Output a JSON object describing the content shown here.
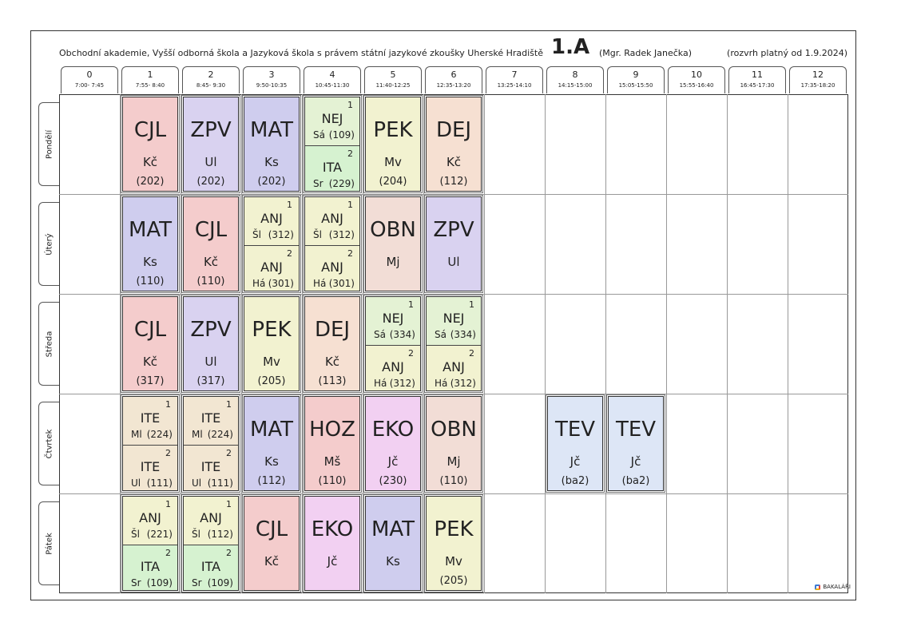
{
  "header": {
    "school": "Obchodní akademie, Vyšší odborná škola a Jazyková škola s právem státní jazykové zkoušky Uherské Hradiště",
    "class_name": "1.A",
    "teacher": "(Mgr. Radek Janečka)",
    "valid_from": "(rozvrh platný od 1.9.2024)"
  },
  "periods": [
    {
      "num": "0",
      "time": "7:00- 7:45"
    },
    {
      "num": "1",
      "time": "7:55- 8:40"
    },
    {
      "num": "2",
      "time": "8:45- 9:30"
    },
    {
      "num": "3",
      "time": "9:50-10:35"
    },
    {
      "num": "4",
      "time": "10:45-11:30"
    },
    {
      "num": "5",
      "time": "11:40-12:25"
    },
    {
      "num": "6",
      "time": "12:35-13:20"
    },
    {
      "num": "7",
      "time": "13:25-14:10"
    },
    {
      "num": "8",
      "time": "14:15-15:00"
    },
    {
      "num": "9",
      "time": "15:05-15:50"
    },
    {
      "num": "10",
      "time": "15:55-16:40"
    },
    {
      "num": "11",
      "time": "16:45-17:30"
    },
    {
      "num": "12",
      "time": "17:35-18:20"
    }
  ],
  "days": [
    "Pondělí",
    "Úterý",
    "Středa",
    "Čtvrtek",
    "Pátek"
  ],
  "colors": {
    "CJL": "#f4cccc",
    "ZPV": "#d9d2f0",
    "MAT": "#cfcdee",
    "PEK": "#f2f2d0",
    "DEJ": "#f6e0d2",
    "NEJ": "#e4f2d4",
    "ITA": "#d6f2d0",
    "ANJ": "#f2f2d0",
    "OBN": "#f2ddd6",
    "ITE": "#f2e6d2",
    "HOZ": "#f4cccc",
    "EKO": "#f2d0f2",
    "TEV": "#dde6f6"
  },
  "lessons": [
    {
      "day": 0,
      "period": 1,
      "subject": "CJL",
      "teacher": "Kč",
      "room": "(202)"
    },
    {
      "day": 0,
      "period": 2,
      "subject": "ZPV",
      "teacher": "Ul",
      "room": "(202)"
    },
    {
      "day": 0,
      "period": 3,
      "subject": "MAT",
      "teacher": "Ks",
      "room": "(202)"
    },
    {
      "day": 0,
      "period": 4,
      "split": [
        {
          "group": "1",
          "subject": "NEJ",
          "teacher": "Sá",
          "room": "(109)"
        },
        {
          "group": "2",
          "subject": "ITA",
          "teacher": "Sr",
          "room": "(229)"
        }
      ]
    },
    {
      "day": 0,
      "period": 5,
      "subject": "PEK",
      "teacher": "Mv",
      "room": "(204)"
    },
    {
      "day": 0,
      "period": 6,
      "subject": "DEJ",
      "teacher": "Kč",
      "room": "(112)"
    },
    {
      "day": 1,
      "period": 1,
      "subject": "MAT",
      "teacher": "Ks",
      "room": "(110)"
    },
    {
      "day": 1,
      "period": 2,
      "subject": "CJL",
      "teacher": "Kč",
      "room": "(110)"
    },
    {
      "day": 1,
      "period": 3,
      "split": [
        {
          "group": "1",
          "subject": "ANJ",
          "teacher": "Šl",
          "room": "(312)"
        },
        {
          "group": "2",
          "subject": "ANJ",
          "teacher": "Há",
          "room": "(301)"
        }
      ]
    },
    {
      "day": 1,
      "period": 4,
      "split": [
        {
          "group": "1",
          "subject": "ANJ",
          "teacher": "Šl",
          "room": "(312)"
        },
        {
          "group": "2",
          "subject": "ANJ",
          "teacher": "Há",
          "room": "(301)"
        }
      ]
    },
    {
      "day": 1,
      "period": 5,
      "subject": "OBN",
      "teacher": "Mj",
      "room": ""
    },
    {
      "day": 1,
      "period": 6,
      "subject": "ZPV",
      "teacher": "Ul",
      "room": ""
    },
    {
      "day": 2,
      "period": 1,
      "subject": "CJL",
      "teacher": "Kč",
      "room": "(317)"
    },
    {
      "day": 2,
      "period": 2,
      "subject": "ZPV",
      "teacher": "Ul",
      "room": "(317)"
    },
    {
      "day": 2,
      "period": 3,
      "subject": "PEK",
      "teacher": "Mv",
      "room": "(205)"
    },
    {
      "day": 2,
      "period": 4,
      "subject": "DEJ",
      "teacher": "Kč",
      "room": "(113)"
    },
    {
      "day": 2,
      "period": 5,
      "split": [
        {
          "group": "1",
          "subject": "NEJ",
          "teacher": "Sá",
          "room": "(334)"
        },
        {
          "group": "2",
          "subject": "ANJ",
          "teacher": "Há",
          "room": "(312)"
        }
      ]
    },
    {
      "day": 2,
      "period": 6,
      "split": [
        {
          "group": "1",
          "subject": "NEJ",
          "teacher": "Sá",
          "room": "(334)"
        },
        {
          "group": "2",
          "subject": "ANJ",
          "teacher": "Há",
          "room": "(312)"
        }
      ]
    },
    {
      "day": 3,
      "period": 1,
      "split": [
        {
          "group": "1",
          "subject": "ITE",
          "teacher": "Ml",
          "room": "(224)"
        },
        {
          "group": "2",
          "subject": "ITE",
          "teacher": "Ul",
          "room": "(111)"
        }
      ]
    },
    {
      "day": 3,
      "period": 2,
      "split": [
        {
          "group": "1",
          "subject": "ITE",
          "teacher": "Ml",
          "room": "(224)"
        },
        {
          "group": "2",
          "subject": "ITE",
          "teacher": "Ul",
          "room": "(111)"
        }
      ]
    },
    {
      "day": 3,
      "period": 3,
      "subject": "MAT",
      "teacher": "Ks",
      "room": "(112)"
    },
    {
      "day": 3,
      "period": 4,
      "subject": "HOZ",
      "teacher": "Mš",
      "room": "(110)"
    },
    {
      "day": 3,
      "period": 5,
      "subject": "EKO",
      "teacher": "Jč",
      "room": "(230)"
    },
    {
      "day": 3,
      "period": 6,
      "subject": "OBN",
      "teacher": "Mj",
      "room": "(110)"
    },
    {
      "day": 3,
      "period": 8,
      "subject": "TEV",
      "teacher": "Jč",
      "room": "(ba2)"
    },
    {
      "day": 3,
      "period": 9,
      "subject": "TEV",
      "teacher": "Jč",
      "room": "(ba2)"
    },
    {
      "day": 4,
      "period": 1,
      "split": [
        {
          "group": "1",
          "subject": "ANJ",
          "teacher": "Šl",
          "room": "(221)"
        },
        {
          "group": "2",
          "subject": "ITA",
          "teacher": "Sr",
          "room": "(109)"
        }
      ]
    },
    {
      "day": 4,
      "period": 2,
      "split": [
        {
          "group": "1",
          "subject": "ANJ",
          "teacher": "Šl",
          "room": "(112)"
        },
        {
          "group": "2",
          "subject": "ITA",
          "teacher": "Sr",
          "room": "(109)"
        }
      ]
    },
    {
      "day": 4,
      "period": 3,
      "subject": "CJL",
      "teacher": "Kč",
      "room": ""
    },
    {
      "day": 4,
      "period": 4,
      "subject": "EKO",
      "teacher": "Jč",
      "room": ""
    },
    {
      "day": 4,
      "period": 5,
      "subject": "MAT",
      "teacher": "Ks",
      "room": ""
    },
    {
      "day": 4,
      "period": 6,
      "subject": "PEK",
      "teacher": "Mv",
      "room": "(205)"
    }
  ],
  "footer": {
    "logo_text": "BAKALÁŘI"
  }
}
